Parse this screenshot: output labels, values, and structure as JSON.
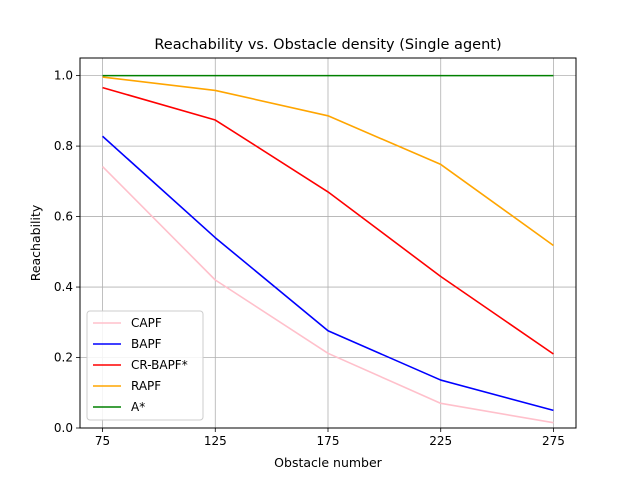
{
  "chart_data": {
    "type": "line",
    "title": "Reachability vs. Obstacle density (Single agent)",
    "xlabel": "Obstacle number",
    "ylabel": "Reachability",
    "x": [
      75,
      125,
      175,
      225,
      275
    ],
    "xticks": [
      "75",
      "125",
      "175",
      "225",
      "275"
    ],
    "yticks": [
      "0.0",
      "0.2",
      "0.4",
      "0.6",
      "0.8",
      "1.0"
    ],
    "xlim": [
      65,
      285
    ],
    "ylim": [
      0.0,
      1.05
    ],
    "grid": true,
    "legend_position": "lower-left",
    "series": [
      {
        "name": "CAPF",
        "color": "#ffc0cb",
        "values": [
          0.742,
          0.42,
          0.212,
          0.07,
          0.015
        ]
      },
      {
        "name": "BAPF",
        "color": "#0000ff",
        "values": [
          0.828,
          0.54,
          0.276,
          0.136,
          0.05
        ]
      },
      {
        "name": "CR-BAPF*",
        "color": "#ff0000",
        "values": [
          0.966,
          0.874,
          0.67,
          0.43,
          0.21
        ]
      },
      {
        "name": "RAPF",
        "color": "#ffa500",
        "values": [
          0.996,
          0.958,
          0.886,
          0.748,
          0.518
        ]
      },
      {
        "name": "A*",
        "color": "#008000",
        "values": [
          1.0,
          1.0,
          1.0,
          1.0,
          1.0
        ]
      }
    ]
  }
}
